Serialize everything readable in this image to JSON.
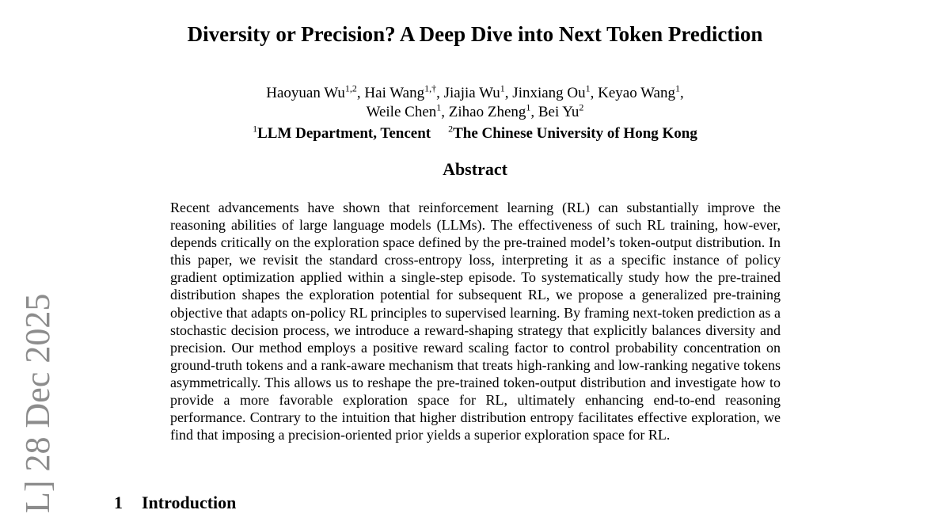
{
  "paper": {
    "title": "Diversity or Precision? A Deep Dive into Next Token Prediction",
    "authors_line1": [
      {
        "name": "Haoyuan Wu",
        "sup": "1,2",
        "sep": ", "
      },
      {
        "name": "Hai Wang",
        "sup": "1,†",
        "sep": ", "
      },
      {
        "name": "Jiajia Wu",
        "sup": "1",
        "sep": ", "
      },
      {
        "name": "Jinxiang Ou",
        "sup": "1",
        "sep": ", "
      },
      {
        "name": "Keyao Wang",
        "sup": "1",
        "sep": ","
      }
    ],
    "authors_line2": [
      {
        "name": "Weile Chen",
        "sup": "1",
        "sep": ", "
      },
      {
        "name": "Zihao Zheng",
        "sup": "1",
        "sep": ", "
      },
      {
        "name": "Bei Yu",
        "sup": "2",
        "sep": ""
      }
    ],
    "affiliations": [
      {
        "sup": "1",
        "name": "LLM Department, Tencent"
      },
      {
        "sup": "2",
        "name": "The Chinese University of Hong Kong"
      }
    ],
    "abstract_heading": "Abstract",
    "abstract_text": "Recent advancements have shown that reinforcement learning (RL) can substantially improve the reasoning abilities of large language models (LLMs). The effectiveness of such RL training, how-­ever, depends critically on the exploration space defined by the pre-trained model’s token-output distribution. In this paper, we revisit the standard cross-entropy loss, interpreting it as a specific instance of policy gradient optimization applied within a single-step episode. To systematically study how the pre-trained distribution shapes the exploration potential for subsequent RL, we propose a generalized pre-training objective that adapts on-policy RL principles to supervised learning. By framing next-token prediction as a stochastic decision process, we introduce a reward-shaping strategy that explicitly balances diversity and precision. Our method employs a positive reward scaling factor to control probability concentration on ground-truth tokens and a rank-aware mechanism that treats high-ranking and low-ranking negative tokens asymmetrically. This allows us to reshape the pre-trained token-output distribution and investigate how to provide a more favorable exploration space for RL, ultimately enhancing end-to-end reasoning performance. Contrary to the intuition that higher distribution entropy facilitates effective exploration, we find that imposing a precision-oriented prior yields a superior exploration space for RL.",
    "section_number": "1",
    "section_title": "Introduction"
  },
  "arxiv_stamp": "L]  28 Dec 2025"
}
